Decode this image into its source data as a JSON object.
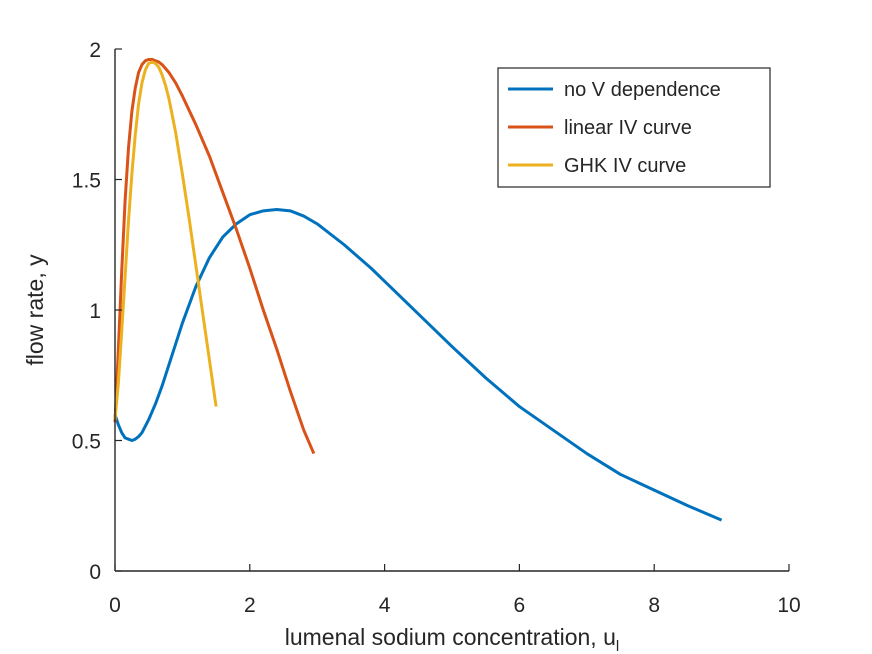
{
  "chart_data": {
    "type": "line",
    "title": "",
    "xlabel_main": "lumenal sodium concentration, u",
    "xlabel_subscript": "l",
    "ylabel": "flow rate, y",
    "xlim": [
      0,
      10
    ],
    "ylim": [
      0,
      2
    ],
    "xticks": [
      0,
      2,
      4,
      6,
      8,
      10
    ],
    "xtick_labels": [
      "0",
      "2",
      "4",
      "6",
      "8",
      "10"
    ],
    "yticks": [
      0,
      0.5,
      1,
      1.5,
      2
    ],
    "ytick_labels": [
      "0",
      "0.5",
      "1",
      "1.5",
      "2"
    ],
    "grid": false,
    "legend_position": "top-right",
    "series": [
      {
        "name": "no V dependence",
        "color": "#0072BD",
        "x": [
          0.0,
          0.05,
          0.1,
          0.15,
          0.2,
          0.25,
          0.3,
          0.35,
          0.4,
          0.5,
          0.6,
          0.7,
          0.8,
          0.9,
          1.0,
          1.2,
          1.4,
          1.6,
          1.8,
          2.0,
          2.2,
          2.4,
          2.6,
          2.8,
          3.0,
          3.4,
          3.8,
          4.2,
          4.6,
          5.0,
          5.5,
          6.0,
          6.5,
          7.0,
          7.5,
          8.0,
          8.5,
          9.0
        ],
        "y": [
          0.6,
          0.56,
          0.53,
          0.51,
          0.505,
          0.5,
          0.505,
          0.515,
          0.53,
          0.58,
          0.64,
          0.71,
          0.79,
          0.87,
          0.95,
          1.09,
          1.2,
          1.28,
          1.33,
          1.365,
          1.38,
          1.385,
          1.38,
          1.36,
          1.33,
          1.25,
          1.16,
          1.06,
          0.96,
          0.86,
          0.74,
          0.63,
          0.54,
          0.45,
          0.37,
          0.31,
          0.25,
          0.195
        ]
      },
      {
        "name": "linear IV curve",
        "color": "#D95319",
        "x": [
          0.0,
          0.05,
          0.1,
          0.15,
          0.2,
          0.25,
          0.3,
          0.35,
          0.4,
          0.45,
          0.5,
          0.55,
          0.6,
          0.65,
          0.7,
          0.8,
          0.9,
          1.0,
          1.2,
          1.4,
          1.6,
          1.8,
          2.0,
          2.2,
          2.4,
          2.6,
          2.8,
          2.95
        ],
        "y": [
          0.57,
          0.85,
          1.15,
          1.42,
          1.62,
          1.76,
          1.85,
          1.91,
          1.94,
          1.955,
          1.96,
          1.96,
          1.955,
          1.95,
          1.94,
          1.91,
          1.87,
          1.82,
          1.71,
          1.59,
          1.45,
          1.31,
          1.16,
          1.0,
          0.85,
          0.69,
          0.54,
          0.45
        ]
      },
      {
        "name": "GHK IV curve",
        "color": "#EDB120",
        "x": [
          0.0,
          0.05,
          0.1,
          0.15,
          0.2,
          0.25,
          0.3,
          0.35,
          0.4,
          0.45,
          0.5,
          0.55,
          0.6,
          0.65,
          0.7,
          0.75,
          0.8,
          0.9,
          1.0,
          1.1,
          1.2,
          1.3,
          1.4,
          1.5
        ],
        "y": [
          0.58,
          0.72,
          0.92,
          1.13,
          1.34,
          1.52,
          1.67,
          1.79,
          1.87,
          1.92,
          1.945,
          1.95,
          1.945,
          1.93,
          1.9,
          1.86,
          1.81,
          1.68,
          1.52,
          1.35,
          1.17,
          0.99,
          0.81,
          0.63
        ]
      }
    ]
  }
}
